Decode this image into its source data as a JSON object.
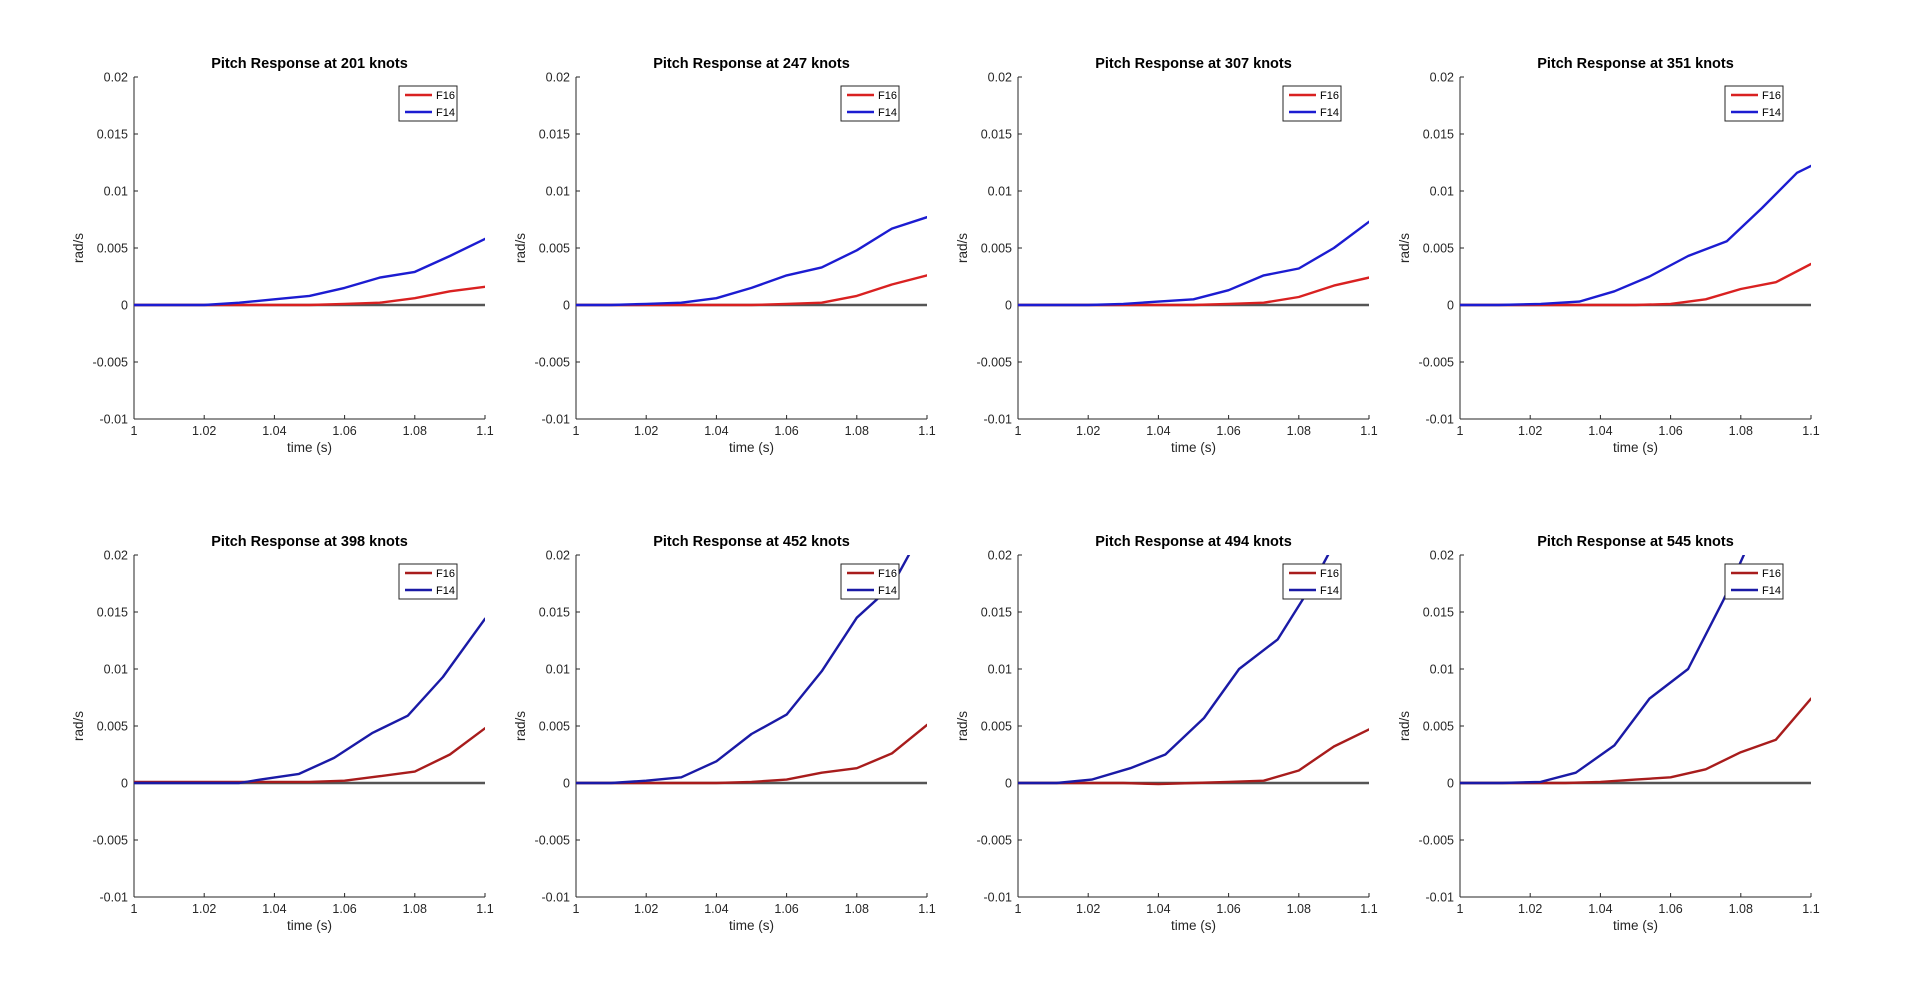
{
  "chart_data": [
    {
      "type": "line",
      "title": "Pitch Response at 201 knots",
      "xlabel": "time (s)",
      "ylabel": "rad/s",
      "xlim": [
        1,
        1.1
      ],
      "ylim": [
        -0.01,
        0.02
      ],
      "xticks": [
        "1",
        "1.02",
        "1.04",
        "1.06",
        "1.08",
        "1.1"
      ],
      "yticks": [
        "-0.01",
        "-0.005",
        "0",
        "0.005",
        "0.01",
        "0.015",
        "0.02"
      ],
      "legend": "top-right",
      "reference_line": 0,
      "series": [
        {
          "name": "F16",
          "color": "#d92121",
          "x": [
            1,
            1.01,
            1.02,
            1.03,
            1.04,
            1.05,
            1.06,
            1.07,
            1.08,
            1.09,
            1.1
          ],
          "y": [
            0,
            0,
            0,
            0,
            0,
            0,
            0.0001,
            0.0002,
            0.0006,
            0.0012,
            0.0016
          ]
        },
        {
          "name": "F14",
          "color": "#1c1cd1",
          "x": [
            1,
            1.01,
            1.02,
            1.03,
            1.04,
            1.05,
            1.06,
            1.07,
            1.08,
            1.09,
            1.1
          ],
          "y": [
            0,
            0,
            0,
            0.0002,
            0.0005,
            0.0008,
            0.0015,
            0.0024,
            0.0029,
            0.0043,
            0.0058
          ]
        }
      ]
    },
    {
      "type": "line",
      "title": "Pitch Response at 247 knots",
      "xlabel": "time (s)",
      "ylabel": "rad/s",
      "xlim": [
        1,
        1.1
      ],
      "ylim": [
        -0.01,
        0.02
      ],
      "xticks": [
        "1",
        "1.02",
        "1.04",
        "1.06",
        "1.08",
        "1.1"
      ],
      "yticks": [
        "-0.01",
        "-0.005",
        "0",
        "0.005",
        "0.01",
        "0.015",
        "0.02"
      ],
      "legend": "top-right",
      "reference_line": 0,
      "series": [
        {
          "name": "F16",
          "color": "#d92121",
          "x": [
            1,
            1.01,
            1.02,
            1.03,
            1.04,
            1.05,
            1.06,
            1.07,
            1.08,
            1.09,
            1.1
          ],
          "y": [
            0,
            0,
            0,
            0,
            0,
            0,
            0.0001,
            0.0002,
            0.0008,
            0.0018,
            0.0026
          ]
        },
        {
          "name": "F14",
          "color": "#1c1cd1",
          "x": [
            1,
            1.01,
            1.02,
            1.03,
            1.04,
            1.05,
            1.06,
            1.07,
            1.08,
            1.09,
            1.1
          ],
          "y": [
            0,
            0,
            0.0001,
            0.0002,
            0.0006,
            0.0015,
            0.0026,
            0.0033,
            0.0048,
            0.0067,
            0.0077
          ]
        }
      ]
    },
    {
      "type": "line",
      "title": "Pitch Response at 307 knots",
      "xlabel": "time (s)",
      "ylabel": "rad/s",
      "xlim": [
        1,
        1.1
      ],
      "ylim": [
        -0.01,
        0.02
      ],
      "xticks": [
        "1",
        "1.02",
        "1.04",
        "1.06",
        "1.08",
        "1.1"
      ],
      "yticks": [
        "-0.01",
        "-0.005",
        "0",
        "0.005",
        "0.01",
        "0.015",
        "0.02"
      ],
      "legend": "top-right",
      "reference_line": 0,
      "series": [
        {
          "name": "F16",
          "color": "#d92121",
          "x": [
            1,
            1.01,
            1.02,
            1.03,
            1.04,
            1.05,
            1.06,
            1.07,
            1.08,
            1.09,
            1.1
          ],
          "y": [
            0,
            0,
            0,
            0,
            0,
            0,
            0.0001,
            0.0002,
            0.0007,
            0.0017,
            0.0024
          ]
        },
        {
          "name": "F14",
          "color": "#1c1cd1",
          "x": [
            1,
            1.01,
            1.02,
            1.03,
            1.04,
            1.05,
            1.06,
            1.07,
            1.08,
            1.09,
            1.1
          ],
          "y": [
            0,
            0,
            0,
            0.0001,
            0.0003,
            0.0005,
            0.0013,
            0.0026,
            0.0032,
            0.005,
            0.0073
          ]
        }
      ]
    },
    {
      "type": "line",
      "title": "Pitch Response at 351 knots",
      "xlabel": "time (s)",
      "ylabel": "rad/s",
      "xlim": [
        1,
        1.1
      ],
      "ylim": [
        -0.01,
        0.02
      ],
      "xticks": [
        "1",
        "1.02",
        "1.04",
        "1.06",
        "1.08",
        "1.1"
      ],
      "yticks": [
        "-0.01",
        "-0.005",
        "0",
        "0.005",
        "0.01",
        "0.015",
        "0.02"
      ],
      "legend": "top-right",
      "reference_line": 0,
      "series": [
        {
          "name": "F16",
          "color": "#d92121",
          "x": [
            1,
            1.01,
            1.02,
            1.03,
            1.04,
            1.05,
            1.06,
            1.07,
            1.08,
            1.09,
            1.1
          ],
          "y": [
            0,
            0,
            0,
            0,
            0,
            0,
            0.0001,
            0.0005,
            0.0014,
            0.002,
            0.0036
          ]
        },
        {
          "name": "F14",
          "color": "#1c1cd1",
          "x": [
            1,
            1.011,
            1.023,
            1.034,
            1.044,
            1.054,
            1.065,
            1.076,
            1.086,
            1.096,
            1.1
          ],
          "y": [
            0,
            0,
            0.0001,
            0.0003,
            0.0012,
            0.0025,
            0.0043,
            0.0056,
            0.0085,
            0.0116,
            0.0122
          ]
        }
      ]
    },
    {
      "type": "line",
      "title": "Pitch Response at 398 knots",
      "xlabel": "time (s)",
      "ylabel": "rad/s",
      "xlim": [
        1,
        1.1
      ],
      "ylim": [
        -0.01,
        0.02
      ],
      "xticks": [
        "1",
        "1.02",
        "1.04",
        "1.06",
        "1.08",
        "1.1"
      ],
      "yticks": [
        "-0.01",
        "-0.005",
        "0",
        "0.005",
        "0.01",
        "0.015",
        "0.02"
      ],
      "legend": "top-right",
      "reference_line": 0,
      "series": [
        {
          "name": "F16",
          "color": "#a81c1c",
          "x": [
            1,
            1.01,
            1.02,
            1.03,
            1.04,
            1.05,
            1.06,
            1.07,
            1.08,
            1.09,
            1.1
          ],
          "y": [
            0.0001,
            0.0001,
            0.0001,
            0.0001,
            0.0001,
            0.0001,
            0.0002,
            0.0006,
            0.001,
            0.0025,
            0.0048
          ]
        },
        {
          "name": "F14",
          "color": "#1a1aa6",
          "x": [
            1,
            1.01,
            1.02,
            1.03,
            1.036,
            1.047,
            1.057,
            1.068,
            1.078,
            1.088,
            1.1
          ],
          "y": [
            0,
            0,
            0,
            0,
            0.0003,
            0.0008,
            0.0022,
            0.0044,
            0.0059,
            0.0093,
            0.0144
          ]
        }
      ]
    },
    {
      "type": "line",
      "title": "Pitch Response at 452 knots",
      "xlabel": "time (s)",
      "ylabel": "rad/s",
      "xlim": [
        1,
        1.1
      ],
      "ylim": [
        -0.01,
        0.02
      ],
      "xticks": [
        "1",
        "1.02",
        "1.04",
        "1.06",
        "1.08",
        "1.1"
      ],
      "yticks": [
        "-0.01",
        "-0.005",
        "0",
        "0.005",
        "0.01",
        "0.015",
        "0.02"
      ],
      "legend": "top-right",
      "reference_line": 0,
      "series": [
        {
          "name": "F16",
          "color": "#a81c1c",
          "x": [
            1,
            1.01,
            1.02,
            1.03,
            1.04,
            1.05,
            1.06,
            1.07,
            1.08,
            1.09,
            1.1
          ],
          "y": [
            0,
            0,
            0,
            0,
            0,
            0.0001,
            0.0003,
            0.0009,
            0.0013,
            0.0026,
            0.0051
          ]
        },
        {
          "name": "F14",
          "color": "#1a1aa6",
          "x": [
            1,
            1.01,
            1.02,
            1.03,
            1.04,
            1.05,
            1.06,
            1.07,
            1.08,
            1.09,
            1.095
          ],
          "y": [
            0,
            0,
            0.0002,
            0.0005,
            0.0019,
            0.0043,
            0.006,
            0.0098,
            0.0145,
            0.0173,
            0.0201
          ]
        }
      ]
    },
    {
      "type": "line",
      "title": "Pitch Response at 494 knots",
      "xlabel": "time (s)",
      "ylabel": "rad/s",
      "xlim": [
        1,
        1.1
      ],
      "ylim": [
        -0.01,
        0.02
      ],
      "xticks": [
        "1",
        "1.02",
        "1.04",
        "1.06",
        "1.08",
        "1.1"
      ],
      "yticks": [
        "-0.01",
        "-0.005",
        "0",
        "0.005",
        "0.01",
        "0.015",
        "0.02"
      ],
      "legend": "top-right",
      "reference_line": 0,
      "series": [
        {
          "name": "F16",
          "color": "#a81c1c",
          "x": [
            1,
            1.01,
            1.02,
            1.03,
            1.04,
            1.05,
            1.06,
            1.07,
            1.08,
            1.09,
            1.1
          ],
          "y": [
            0,
            0,
            0,
            0,
            -0.0001,
            0,
            0.0001,
            0.0002,
            0.0011,
            0.0032,
            0.0047
          ]
        },
        {
          "name": "F14",
          "color": "#1a1aa6",
          "x": [
            1,
            1.011,
            1.021,
            1.032,
            1.042,
            1.053,
            1.063,
            1.074,
            1.084,
            1.0885
          ],
          "y": [
            0,
            0,
            0.0003,
            0.0013,
            0.0025,
            0.0057,
            0.01,
            0.0126,
            0.0175,
            0.0201
          ]
        }
      ]
    },
    {
      "type": "line",
      "title": "Pitch Response at 545 knots",
      "xlabel": "time (s)",
      "ylabel": "rad/s",
      "xlim": [
        1,
        1.1
      ],
      "ylim": [
        -0.01,
        0.02
      ],
      "xticks": [
        "1",
        "1.02",
        "1.04",
        "1.06",
        "1.08",
        "1.1"
      ],
      "yticks": [
        "-0.01",
        "-0.005",
        "0",
        "0.005",
        "0.01",
        "0.015",
        "0.02"
      ],
      "legend": "top-right",
      "reference_line": 0,
      "series": [
        {
          "name": "F16",
          "color": "#a81c1c",
          "x": [
            1,
            1.01,
            1.02,
            1.03,
            1.04,
            1.05,
            1.06,
            1.07,
            1.08,
            1.09,
            1.1
          ],
          "y": [
            0,
            0,
            0,
            0,
            0.0001,
            0.0003,
            0.0005,
            0.0012,
            0.0027,
            0.0038,
            0.0074
          ]
        },
        {
          "name": "F14",
          "color": "#1a1aa6",
          "x": [
            1,
            1.012,
            1.023,
            1.033,
            1.044,
            1.054,
            1.065,
            1.075,
            1.081
          ],
          "y": [
            0,
            0,
            0.0001,
            0.0009,
            0.0033,
            0.0074,
            0.01,
            0.016,
            0.0201
          ]
        }
      ]
    }
  ]
}
